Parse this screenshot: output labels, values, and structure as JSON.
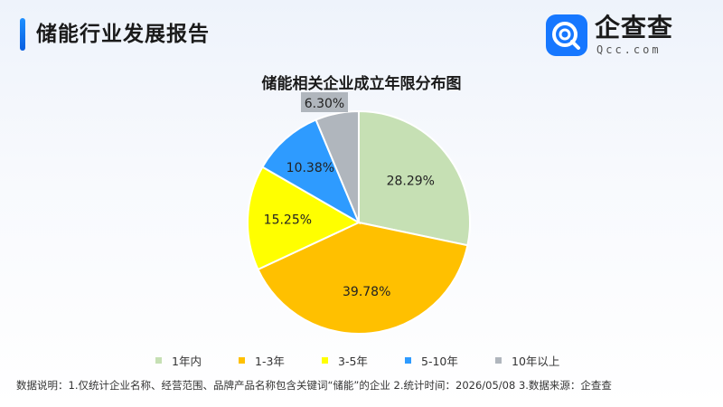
{
  "header": {
    "title": "储能行业发展报告"
  },
  "logo": {
    "icon": "qcc-logo-icon",
    "name": "企查查",
    "domain": "Qcc.com",
    "color": "#1677ff"
  },
  "chart_data": {
    "type": "pie",
    "title": "储能相关企业成立年限分布图",
    "slices": [
      {
        "label": "1年内",
        "value": 28.29,
        "display": "28.29%",
        "color": "#c6e0b4"
      },
      {
        "label": "1-3年",
        "value": 39.78,
        "display": "39.78%",
        "color": "#ffc000"
      },
      {
        "label": "3-5年",
        "value": 15.25,
        "display": "15.25%",
        "color": "#ffff00"
      },
      {
        "label": "5-10年",
        "value": 10.38,
        "display": "10.38%",
        "color": "#2e9bff"
      },
      {
        "label": "10年以上",
        "value": 6.3,
        "display": "6.30%",
        "color": "#b0b6bd"
      }
    ],
    "legend_position": "bottom"
  },
  "footer": {
    "note": "数据说明：1.仅统计企业名称、经营范围、品牌产品名称包含关键词“储能”的企业  2.统计时间：2026/05/08   3.数据来源：企查查"
  }
}
